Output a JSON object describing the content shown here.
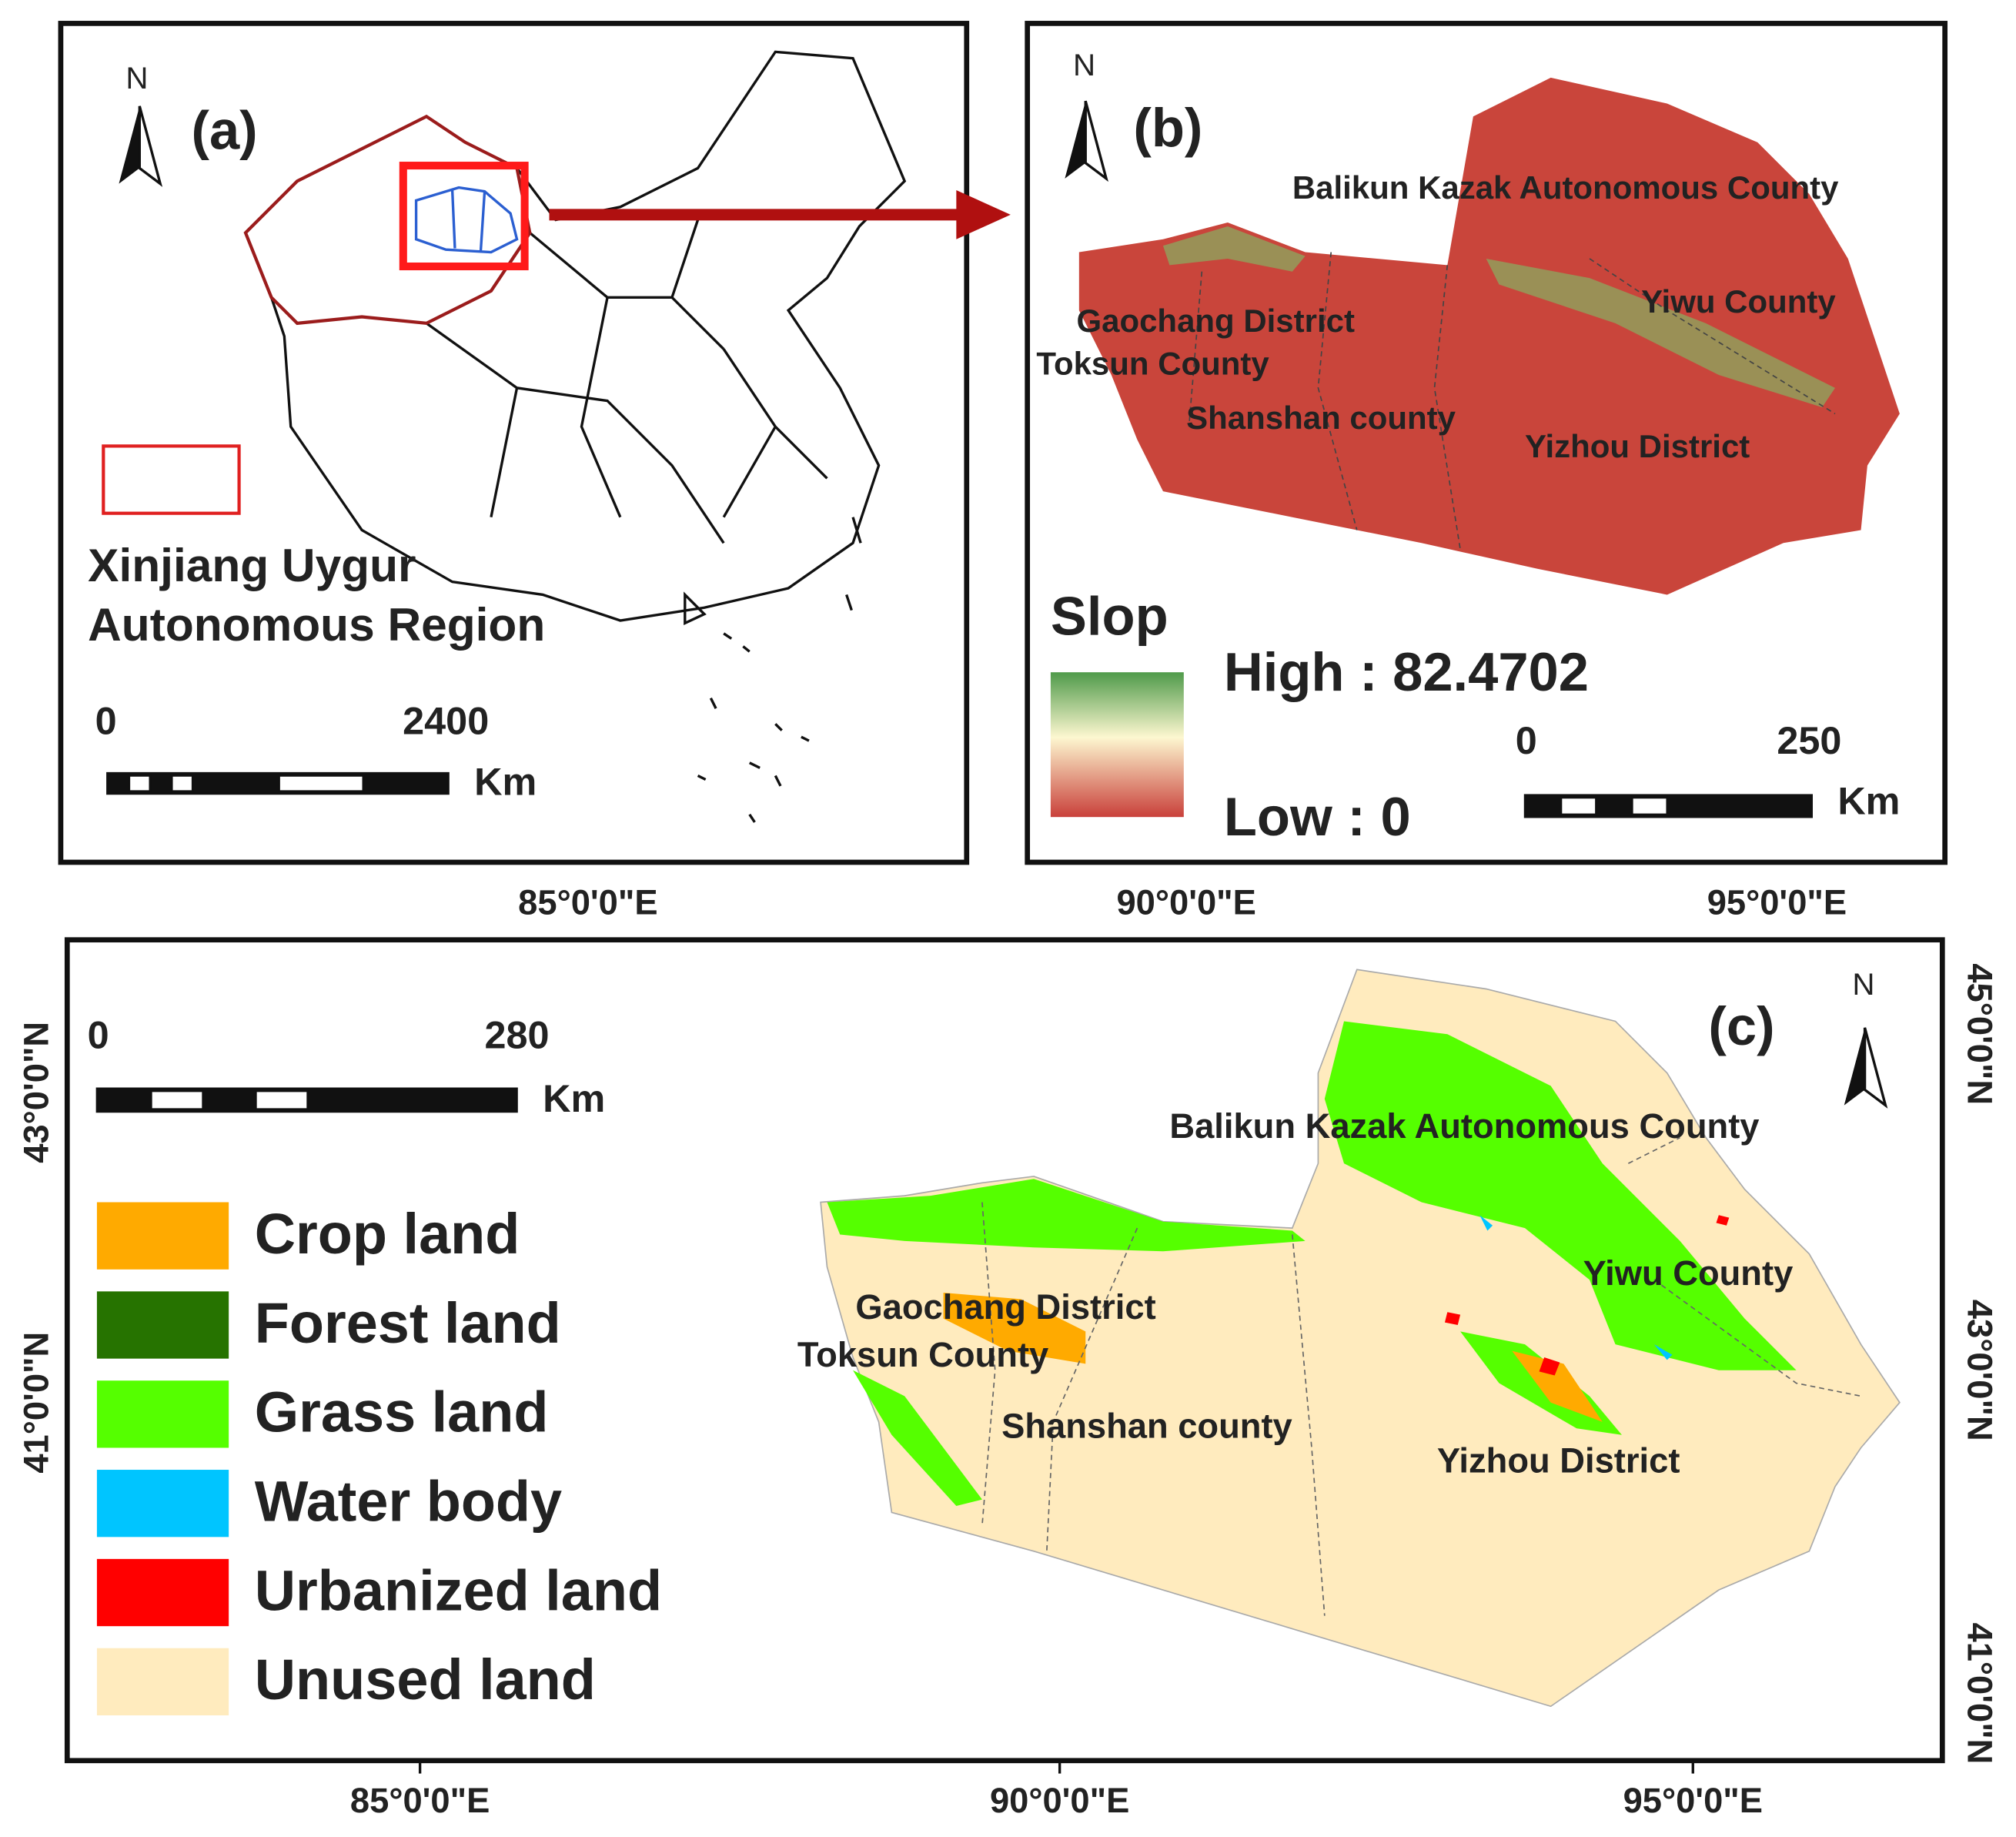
{
  "panel_a": {
    "label": "(a)",
    "north": "N",
    "legend_label": [
      "Xinjiang Uygur",
      "Autonomous Region"
    ],
    "scale": {
      "start": 0,
      "end": 2400,
      "unit": "Km"
    }
  },
  "panel_b": {
    "label": "(b)",
    "north": "N",
    "counties": [
      "Balikun Kazak Autonomous County",
      "Yiwu County",
      "Gaochang District",
      "Toksun County",
      "Shanshan county",
      "Yizhou District"
    ],
    "legend_title": "Slop",
    "legend_high": "High : 82.4702",
    "legend_low": "Low : 0",
    "scale": {
      "start": 0,
      "end": 250,
      "unit": "Km"
    }
  },
  "panel_c": {
    "label": "(c)",
    "north": "N",
    "counties": [
      "Balikun Kazak Autonomous County",
      "Yiwu County",
      "Gaochang District",
      "Toksun County",
      "Shanshan county",
      "Yizhou District"
    ],
    "scale": {
      "start": 0,
      "end": 280,
      "unit": "Km"
    },
    "legend": [
      {
        "name": "Crop land",
        "color": "#ffaa00"
      },
      {
        "name": "Forest land",
        "color": "#267300"
      },
      {
        "name": "Grass land",
        "color": "#55ff00"
      },
      {
        "name": "Water body",
        "color": "#00c5ff"
      },
      {
        "name": "Urbanized land",
        "color": "#ff0000"
      },
      {
        "name": "Unused land",
        "color": "#ffebbe"
      }
    ]
  },
  "axes": {
    "top": [
      "85°0'0\"E",
      "90°0'0\"E",
      "95°0'0\"E"
    ],
    "bottom": [
      "85°0'0\"E",
      "90°0'0\"E",
      "95°0'0\"E"
    ],
    "left": [
      "43°0'0\"N",
      "41°0'0\"N"
    ],
    "right": [
      "45°0'0\"N",
      "43°0'0\"N",
      "41°0'0\"N"
    ]
  }
}
